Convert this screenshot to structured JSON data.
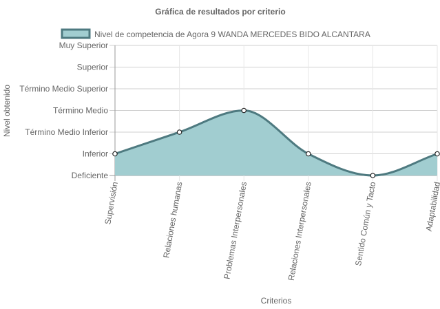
{
  "chart_data": {
    "type": "area",
    "title": "Gráfica de resultados por criterio",
    "xlabel": "Criterios",
    "ylabel": "Nivel obtenido",
    "y_levels": [
      "Deficiente",
      "Inferior",
      "Término Medio Inferior",
      "Término Medio",
      "Término Medio Superior",
      "Superior",
      "Muy Superior"
    ],
    "categories": [
      "Supervisión",
      "Relaciones humanas",
      "Problemas Interpersonales",
      "Relaciones Interpersonales",
      "Sentido Común y Tacto",
      "Adaptabilidad"
    ],
    "series": [
      {
        "name": "Nivel de competencia de Agora 9 WANDA MERCEDES BIDO ALCANTARA",
        "values": [
          1,
          2,
          3,
          1,
          0,
          1
        ],
        "value_labels": [
          "Inferior",
          "Término Medio Inferior",
          "Término Medio",
          "Inferior",
          "Deficiente",
          "Inferior"
        ],
        "fill_color": "#a1cdd0",
        "line_color": "#4e7a80"
      }
    ],
    "ylim": [
      0,
      6
    ],
    "grid": true,
    "legend_position": "top"
  }
}
